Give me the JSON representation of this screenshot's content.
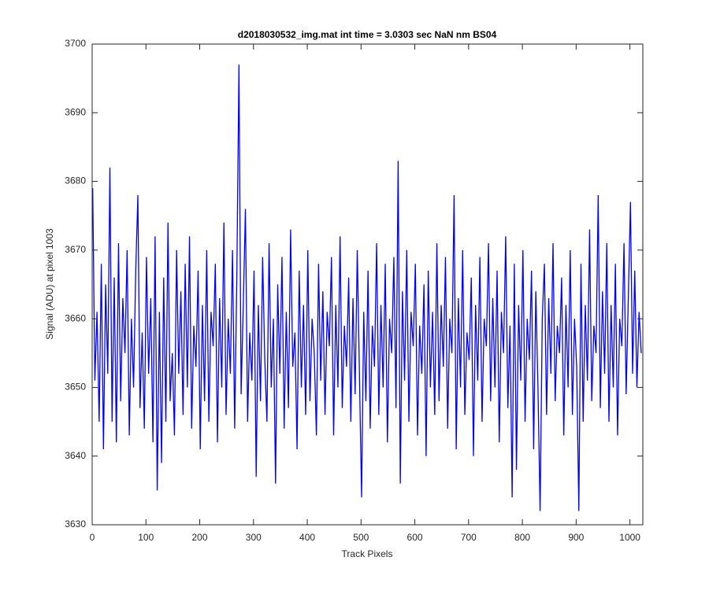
{
  "chart_data": {
    "type": "line",
    "title": "d2018030532_img.mat int time = 3.0303 sec  NaN nm BS04",
    "xlabel": "Track Pixels",
    "ylabel": "Signal (ADU) at pixel 1003",
    "color": "#0000ff",
    "xlim": [
      0,
      1024
    ],
    "xticks": [
      0,
      100,
      200,
      300,
      400,
      500,
      600,
      700,
      800,
      900,
      1000
    ],
    "ylim": [
      3630,
      3700
    ],
    "yticks": [
      3630,
      3640,
      3650,
      3660,
      3670,
      3680,
      3690,
      3700
    ],
    "grid": false,
    "x": [
      1,
      5,
      9,
      13,
      17,
      21,
      25,
      29,
      33,
      37,
      41,
      45,
      49,
      53,
      57,
      61,
      65,
      69,
      73,
      77,
      81,
      85,
      89,
      93,
      97,
      101,
      105,
      109,
      113,
      117,
      121,
      125,
      129,
      133,
      137,
      141,
      145,
      149,
      153,
      157,
      161,
      165,
      169,
      173,
      177,
      181,
      185,
      189,
      193,
      197,
      201,
      205,
      209,
      213,
      217,
      221,
      225,
      229,
      233,
      237,
      241,
      245,
      249,
      253,
      257,
      261,
      265,
      269,
      273,
      277,
      281,
      285,
      289,
      293,
      297,
      301,
      305,
      309,
      313,
      317,
      321,
      325,
      329,
      333,
      337,
      341,
      345,
      349,
      353,
      357,
      361,
      365,
      369,
      373,
      377,
      381,
      385,
      389,
      393,
      397,
      401,
      405,
      409,
      413,
      417,
      421,
      425,
      429,
      433,
      437,
      441,
      445,
      449,
      453,
      457,
      461,
      465,
      469,
      473,
      477,
      481,
      485,
      489,
      493,
      497,
      501,
      505,
      509,
      513,
      517,
      521,
      525,
      529,
      533,
      537,
      541,
      545,
      549,
      553,
      557,
      561,
      565,
      569,
      573,
      577,
      581,
      585,
      589,
      593,
      597,
      601,
      605,
      609,
      613,
      617,
      621,
      625,
      629,
      633,
      637,
      641,
      645,
      649,
      653,
      657,
      661,
      665,
      669,
      673,
      677,
      681,
      685,
      689,
      693,
      697,
      701,
      705,
      709,
      713,
      717,
      721,
      725,
      729,
      733,
      737,
      741,
      745,
      749,
      753,
      757,
      761,
      765,
      769,
      773,
      777,
      781,
      785,
      789,
      793,
      797,
      801,
      805,
      809,
      813,
      817,
      821,
      825,
      829,
      833,
      837,
      841,
      845,
      849,
      853,
      857,
      861,
      865,
      869,
      873,
      877,
      881,
      885,
      889,
      893,
      897,
      901,
      905,
      909,
      913,
      917,
      921,
      925,
      929,
      933,
      937,
      941,
      945,
      949,
      953,
      957,
      961,
      965,
      969,
      973,
      977,
      981,
      985,
      989,
      993,
      997,
      1001,
      1005,
      1009,
      1013,
      1017,
      1021
    ],
    "values": [
      3679,
      3651,
      3661,
      3645,
      3668,
      3641,
      3665,
      3652,
      3682,
      3645,
      3666,
      3642,
      3671,
      3648,
      3663,
      3655,
      3670,
      3643,
      3660,
      3650,
      3667,
      3678,
      3647,
      3658,
      3644,
      3669,
      3652,
      3663,
      3642,
      3672,
      3635,
      3661,
      3639,
      3666,
      3645,
      3674,
      3648,
      3655,
      3643,
      3670,
      3652,
      3664,
      3646,
      3668,
      3650,
      3672,
      3644,
      3659,
      3653,
      3667,
      3641,
      3662,
      3648,
      3670,
      3645,
      3661,
      3656,
      3668,
      3642,
      3663,
      3650,
      3674,
      3646,
      3660,
      3652,
      3670,
      3644,
      3666,
      3697,
      3649,
      3662,
      3676,
      3645,
      3658,
      3651,
      3667,
      3637,
      3662,
      3648,
      3669,
      3654,
      3645,
      3671,
      3650,
      3660,
      3636,
      3665,
      3652,
      3669,
      3644,
      3661,
      3647,
      3673,
      3653,
      3658,
      3641,
      3667,
      3650,
      3662,
      3646,
      3670,
      3648,
      3660,
      3655,
      3643,
      3668,
      3651,
      3664,
      3646,
      3661,
      3656,
      3669,
      3643,
      3662,
      3650,
      3672,
      3647,
      3659,
      3653,
      3666,
      3645,
      3663,
      3649,
      3670,
      3652,
      3634,
      3661,
      3648,
      3667,
      3644,
      3659,
      3653,
      3671,
      3646,
      3662,
      3650,
      3668,
      3642,
      3660,
      3655,
      3669,
      3647,
      3683,
      3636,
      3664,
      3651,
      3670,
      3645,
      3661,
      3656,
      3668,
      3643,
      3659,
      3652,
      3665,
      3640,
      3667,
      3650,
      3661,
      3646,
      3671,
      3648,
      3662,
      3653,
      3669,
      3644,
      3660,
      3655,
      3678,
      3641,
      3663,
      3650,
      3670,
      3646,
      3658,
      3654,
      3666,
      3640,
      3662,
      3651,
      3669,
      3645,
      3660,
      3656,
      3671,
      3648,
      3663,
      3650,
      3667,
      3642,
      3661,
      3655,
      3672,
      3647,
      3659,
      3634,
      3668,
      3638,
      3662,
      3651,
      3670,
      3645,
      3660,
      3654,
      3667,
      3641,
      3664,
      3650,
      3632,
      3660,
      3668,
      3646,
      3663,
      3652,
      3671,
      3648,
      3659,
      3655,
      3666,
      3643,
      3662,
      3650,
      3670,
      3646,
      3660,
      3653,
      3632,
      3668,
      3645,
      3662,
      3651,
      3673,
      3648,
      3659,
      3655,
      3678,
      3647,
      3664,
      3652,
      3671,
      3645,
      3662,
      3650,
      3668,
      3643,
      3660,
      3656,
      3671,
      3649,
      3663,
      3677,
      3652,
      3667,
      3650,
      3661,
      3655
    ]
  }
}
